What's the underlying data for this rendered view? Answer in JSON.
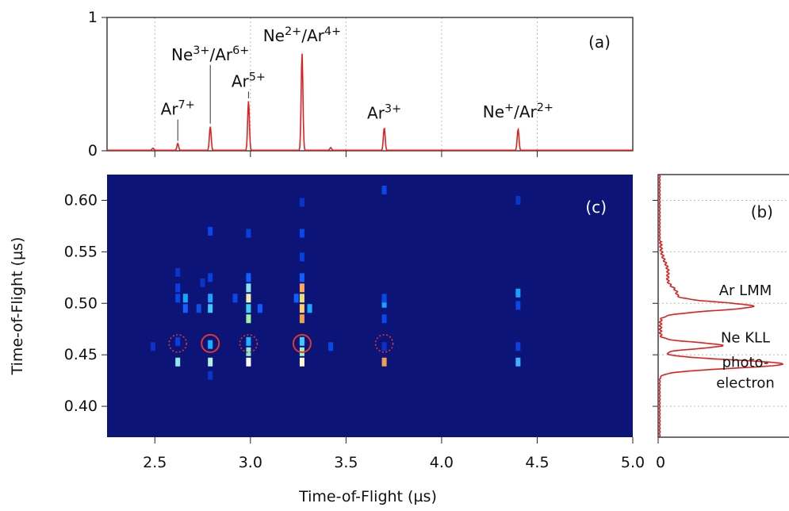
{
  "chart_data": [
    {
      "panel": "a",
      "type": "line",
      "label": "(a)",
      "xlim": [
        2.25,
        5.0
      ],
      "ylim": [
        0,
        1
      ],
      "yticks": [
        "0",
        "1"
      ],
      "grid": true,
      "line_color": "#e0201e",
      "series": [
        {
          "peaks": [
            {
              "x": 2.49,
              "h": 0.015
            },
            {
              "x": 2.62,
              "h": 0.05
            },
            {
              "x": 2.79,
              "h": 0.18
            },
            {
              "x": 2.99,
              "h": 0.37
            },
            {
              "x": 3.27,
              "h": 0.73
            },
            {
              "x": 3.42,
              "h": 0.02
            },
            {
              "x": 3.7,
              "h": 0.17
            },
            {
              "x": 4.4,
              "h": 0.16
            }
          ]
        }
      ],
      "annotations": [
        {
          "x": 2.62,
          "y": 0.27,
          "base": "Ar",
          "sup": "7+",
          "tick": true
        },
        {
          "x": 2.79,
          "y": 0.68,
          "base": "Ne",
          "sup": "3+",
          "sep": "/",
          "base2": "Ar",
          "sup2": "6+",
          "tick": true
        },
        {
          "x": 2.99,
          "y": 0.48,
          "base": "Ar",
          "sup": "5+",
          "tick": true
        },
        {
          "x": 3.27,
          "y": 0.82,
          "base": "Ne",
          "sup": "2+",
          "sep": "/",
          "base2": "Ar",
          "sup2": "4+",
          "tick": false
        },
        {
          "x": 3.7,
          "y": 0.24,
          "base": "Ar",
          "sup": "3+",
          "tick": false
        },
        {
          "x": 4.4,
          "y": 0.25,
          "base": "Ne",
          "sup": "+",
          "sep": "/",
          "base2": "Ar",
          "sup2": "2+",
          "tick": false
        }
      ]
    },
    {
      "panel": "c",
      "type": "heatmap",
      "label": "(c)",
      "xlabel": "Time-of-Flight (µs)",
      "ylabel": "Time-of-Flight (µs)",
      "xlim": [
        2.25,
        5.0
      ],
      "ylim": [
        0.37,
        0.625
      ],
      "xticks": [
        "2.5",
        "3.0",
        "3.5",
        "4.0",
        "4.5",
        "5.0"
      ],
      "yticks": [
        "0.40",
        "0.45",
        "0.50",
        "0.55",
        "0.60"
      ],
      "background": "#0c1478",
      "cells": [
        [
          2.49,
          0.458,
          "#1030c8"
        ],
        [
          2.62,
          0.443,
          "#90e8e8"
        ],
        [
          2.62,
          0.463,
          "#0840e0"
        ],
        [
          2.62,
          0.505,
          "#0a46e8"
        ],
        [
          2.62,
          0.515,
          "#0840e0"
        ],
        [
          2.62,
          0.53,
          "#0a36c8"
        ],
        [
          2.66,
          0.505,
          "#14a8ff"
        ],
        [
          2.66,
          0.495,
          "#1060ff"
        ],
        [
          2.73,
          0.495,
          "#1050e0"
        ],
        [
          2.79,
          0.43,
          "#0a36c8"
        ],
        [
          2.79,
          0.443,
          "#b0f0e0"
        ],
        [
          2.79,
          0.46,
          "#18b0ff"
        ],
        [
          2.79,
          0.495,
          "#40c8ff"
        ],
        [
          2.79,
          0.505,
          "#20a0ff"
        ],
        [
          2.79,
          0.525,
          "#0840e0"
        ],
        [
          2.79,
          0.57,
          "#0a46e8"
        ],
        [
          2.75,
          0.52,
          "#0a36c8"
        ],
        [
          2.99,
          0.443,
          "#ffffff"
        ],
        [
          2.99,
          0.453,
          "#90e8d0"
        ],
        [
          2.99,
          0.463,
          "#20b0ff"
        ],
        [
          2.99,
          0.485,
          "#a0f0a0"
        ],
        [
          2.99,
          0.495,
          "#40d0f0"
        ],
        [
          2.99,
          0.505,
          "#f0f0b0"
        ],
        [
          2.99,
          0.515,
          "#90e0f0"
        ],
        [
          2.99,
          0.525,
          "#1060ff"
        ],
        [
          2.99,
          0.568,
          "#0840e0"
        ],
        [
          3.05,
          0.495,
          "#1058ff"
        ],
        [
          2.92,
          0.505,
          "#0a46e8"
        ],
        [
          3.27,
          0.443,
          "#fff8d0"
        ],
        [
          3.27,
          0.453,
          "#a0f0c0"
        ],
        [
          3.27,
          0.463,
          "#40c8ff"
        ],
        [
          3.27,
          0.485,
          "#f0a050"
        ],
        [
          3.27,
          0.495,
          "#ffd070"
        ],
        [
          3.27,
          0.505,
          "#e8e080"
        ],
        [
          3.27,
          0.515,
          "#ffa860"
        ],
        [
          3.27,
          0.525,
          "#1060ff"
        ],
        [
          3.27,
          0.545,
          "#0840e0"
        ],
        [
          3.27,
          0.568,
          "#0a46e8"
        ],
        [
          3.27,
          0.598,
          "#0a36c8"
        ],
        [
          3.31,
          0.495,
          "#20a8ff"
        ],
        [
          3.24,
          0.505,
          "#1060ff"
        ],
        [
          3.42,
          0.458,
          "#0a46e8"
        ],
        [
          3.7,
          0.443,
          "#f0a050"
        ],
        [
          3.7,
          0.458,
          "#1030c8"
        ],
        [
          3.7,
          0.485,
          "#0a46e8"
        ],
        [
          3.7,
          0.5,
          "#18a0ff"
        ],
        [
          3.7,
          0.505,
          "#0a46e8"
        ],
        [
          3.7,
          0.61,
          "#0a46e8"
        ],
        [
          4.4,
          0.443,
          "#40b0ff"
        ],
        [
          4.4,
          0.458,
          "#1040e0"
        ],
        [
          4.4,
          0.498,
          "#0a46e8"
        ],
        [
          4.4,
          0.51,
          "#18a0ff"
        ],
        [
          4.4,
          0.6,
          "#0a36c8"
        ]
      ],
      "circles": [
        {
          "x": 2.62,
          "y": 0.461,
          "style": "dotted"
        },
        {
          "x": 2.79,
          "y": 0.461,
          "style": "solid"
        },
        {
          "x": 2.99,
          "y": 0.461,
          "style": "dotted"
        },
        {
          "x": 3.27,
          "y": 0.461,
          "style": "solid"
        },
        {
          "x": 3.7,
          "y": 0.461,
          "style": "dotted"
        }
      ],
      "circle_color": "#e0382a"
    },
    {
      "panel": "b",
      "type": "line",
      "label": "(b)",
      "xticks": [
        "0",
        "1"
      ],
      "ylim": [
        0.37,
        0.625
      ],
      "line_color": "#e0201e",
      "peaks": [
        {
          "y": 0.441,
          "h": 1.0,
          "w": 0.004
        },
        {
          "y": 0.459,
          "h": 0.5,
          "w": 0.003
        },
        {
          "y": 0.497,
          "h": 0.74,
          "w": 0.004
        },
        {
          "y": 0.51,
          "h": 0.12,
          "w": 0.006
        },
        {
          "y": 0.53,
          "h": 0.06,
          "w": 0.01
        }
      ],
      "annotations": [
        {
          "y": 0.508,
          "text": "Ar LMM"
        },
        {
          "y": 0.462,
          "text": "Ne KLL"
        },
        {
          "y": 0.438,
          "text": "photo-"
        },
        {
          "y": 0.418,
          "text": "electron"
        }
      ]
    }
  ]
}
